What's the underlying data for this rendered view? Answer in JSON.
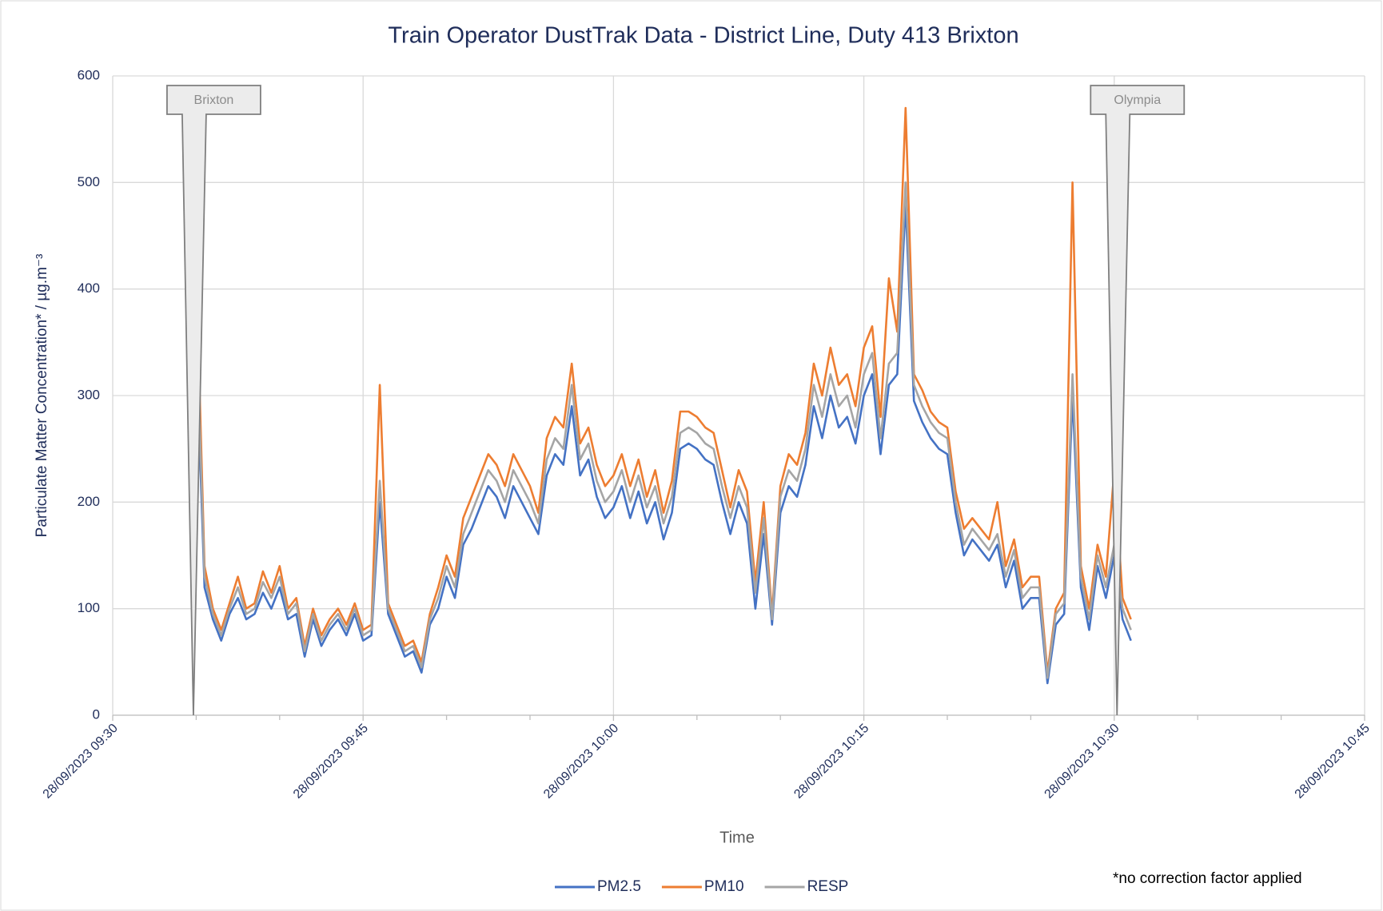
{
  "chart_data": {
    "type": "line",
    "title": "Train Operator DustTrak Data - District Line, Duty 413 Brixton",
    "x_label": "Time",
    "y_label": "Particulate Matter Concentration* / µg.m⁻³",
    "note": "*no correction factor applied",
    "xlim": [
      "28/09/2023 09:30",
      "28/09/2023 10:45"
    ],
    "xticks": [
      "28/09/2023 09:30",
      "28/09/2023 09:45",
      "28/09/2023 10:00",
      "28/09/2023 10:15",
      "28/09/2023 10:30",
      "28/09/2023 10:45"
    ],
    "xminorticks": [
      "28/09/2023 09:35",
      "28/09/2023 09:40",
      "28/09/2023 09:50",
      "28/09/2023 09:55",
      "28/09/2023 10:05",
      "28/09/2023 10:10",
      "28/09/2023 10:20",
      "28/09/2023 10:25",
      "28/09/2023 10:35",
      "28/09/2023 10:40"
    ],
    "ylim": [
      0,
      600
    ],
    "yticks": [
      0,
      100,
      200,
      300,
      400,
      500,
      600
    ],
    "grid": true,
    "legend": "bottom",
    "annotations": [
      {
        "text": "Brixton",
        "x": "28/09/2023 09:34:50"
      },
      {
        "text": "Olympia",
        "x": "28/09/2023 10:30:10"
      }
    ],
    "x": [
      "28/09/2023 09:35:00",
      "28/09/2023 09:35:30",
      "28/09/2023 09:36:00",
      "28/09/2023 09:36:30",
      "28/09/2023 09:37:00",
      "28/09/2023 09:37:30",
      "28/09/2023 09:38:00",
      "28/09/2023 09:38:30",
      "28/09/2023 09:39:00",
      "28/09/2023 09:39:30",
      "28/09/2023 09:40:00",
      "28/09/2023 09:40:30",
      "28/09/2023 09:41:00",
      "28/09/2023 09:41:30",
      "28/09/2023 09:42:00",
      "28/09/2023 09:42:30",
      "28/09/2023 09:43:00",
      "28/09/2023 09:43:30",
      "28/09/2023 09:44:00",
      "28/09/2023 09:44:30",
      "28/09/2023 09:45:00",
      "28/09/2023 09:45:30",
      "28/09/2023 09:46:00",
      "28/09/2023 09:46:30",
      "28/09/2023 09:47:00",
      "28/09/2023 09:47:30",
      "28/09/2023 09:48:00",
      "28/09/2023 09:48:30",
      "28/09/2023 09:49:00",
      "28/09/2023 09:49:30",
      "28/09/2023 09:50:00",
      "28/09/2023 09:50:30",
      "28/09/2023 09:51:00",
      "28/09/2023 09:51:30",
      "28/09/2023 09:52:00",
      "28/09/2023 09:52:30",
      "28/09/2023 09:53:00",
      "28/09/2023 09:53:30",
      "28/09/2023 09:54:00",
      "28/09/2023 09:54:30",
      "28/09/2023 09:55:00",
      "28/09/2023 09:55:30",
      "28/09/2023 09:56:00",
      "28/09/2023 09:56:30",
      "28/09/2023 09:57:00",
      "28/09/2023 09:57:30",
      "28/09/2023 09:58:00",
      "28/09/2023 09:58:30",
      "28/09/2023 09:59:00",
      "28/09/2023 09:59:30",
      "28/09/2023 10:00:00",
      "28/09/2023 10:00:30",
      "28/09/2023 10:01:00",
      "28/09/2023 10:01:30",
      "28/09/2023 10:02:00",
      "28/09/2023 10:02:30",
      "28/09/2023 10:03:00",
      "28/09/2023 10:03:30",
      "28/09/2023 10:04:00",
      "28/09/2023 10:04:30",
      "28/09/2023 10:05:00",
      "28/09/2023 10:05:30",
      "28/09/2023 10:06:00",
      "28/09/2023 10:06:30",
      "28/09/2023 10:07:00",
      "28/09/2023 10:07:30",
      "28/09/2023 10:08:00",
      "28/09/2023 10:08:30",
      "28/09/2023 10:09:00",
      "28/09/2023 10:09:30",
      "28/09/2023 10:10:00",
      "28/09/2023 10:10:30",
      "28/09/2023 10:11:00",
      "28/09/2023 10:11:30",
      "28/09/2023 10:12:00",
      "28/09/2023 10:12:30",
      "28/09/2023 10:13:00",
      "28/09/2023 10:13:30",
      "28/09/2023 10:14:00",
      "28/09/2023 10:14:30",
      "28/09/2023 10:15:00",
      "28/09/2023 10:15:30",
      "28/09/2023 10:16:00",
      "28/09/2023 10:16:30",
      "28/09/2023 10:17:00",
      "28/09/2023 10:17:30",
      "28/09/2023 10:18:00",
      "28/09/2023 10:18:30",
      "28/09/2023 10:19:00",
      "28/09/2023 10:19:30",
      "28/09/2023 10:20:00",
      "28/09/2023 10:20:30",
      "28/09/2023 10:21:00",
      "28/09/2023 10:21:30",
      "28/09/2023 10:22:00",
      "28/09/2023 10:22:30",
      "28/09/2023 10:23:00",
      "28/09/2023 10:23:30",
      "28/09/2023 10:24:00",
      "28/09/2023 10:24:30",
      "28/09/2023 10:25:00",
      "28/09/2023 10:25:30",
      "28/09/2023 10:26:00",
      "28/09/2023 10:26:30",
      "28/09/2023 10:27:00",
      "28/09/2023 10:27:30",
      "28/09/2023 10:28:00",
      "28/09/2023 10:28:30",
      "28/09/2023 10:29:00",
      "28/09/2023 10:29:30",
      "28/09/2023 10:30:00",
      "28/09/2023 10:30:30",
      "28/09/2023 10:31:00"
    ],
    "series": [
      {
        "name": "PM2.5",
        "color": "#4472c4",
        "values": [
          350,
          120,
          90,
          70,
          95,
          110,
          90,
          95,
          115,
          100,
          120,
          90,
          95,
          55,
          90,
          65,
          80,
          90,
          75,
          95,
          70,
          75,
          200,
          95,
          75,
          55,
          60,
          40,
          85,
          100,
          130,
          110,
          160,
          175,
          195,
          215,
          205,
          185,
          215,
          200,
          185,
          170,
          225,
          245,
          235,
          290,
          225,
          240,
          205,
          185,
          195,
          215,
          185,
          210,
          180,
          200,
          165,
          190,
          250,
          255,
          250,
          240,
          235,
          200,
          170,
          200,
          180,
          100,
          170,
          85,
          190,
          215,
          205,
          235,
          290,
          260,
          300,
          270,
          280,
          255,
          300,
          320,
          245,
          310,
          320,
          480,
          295,
          275,
          260,
          250,
          245,
          190,
          150,
          165,
          155,
          145,
          160,
          120,
          145,
          100,
          110,
          110,
          30,
          85,
          95,
          300,
          120,
          80,
          140,
          110,
          150,
          90,
          70
        ]
      },
      {
        "name": "PM10",
        "color": "#ed7d31",
        "values": [
          420,
          140,
          100,
          80,
          105,
          130,
          100,
          105,
          135,
          115,
          140,
          100,
          110,
          65,
          100,
          75,
          90,
          100,
          85,
          105,
          80,
          85,
          310,
          105,
          85,
          65,
          70,
          50,
          95,
          120,
          150,
          130,
          185,
          205,
          225,
          245,
          235,
          215,
          245,
          230,
          215,
          190,
          260,
          280,
          270,
          330,
          255,
          270,
          235,
          215,
          225,
          245,
          215,
          240,
          205,
          230,
          190,
          220,
          285,
          285,
          280,
          270,
          265,
          230,
          195,
          230,
          210,
          125,
          200,
          95,
          215,
          245,
          235,
          265,
          330,
          300,
          345,
          310,
          320,
          290,
          345,
          365,
          280,
          410,
          360,
          570,
          320,
          305,
          285,
          275,
          270,
          210,
          175,
          185,
          175,
          165,
          200,
          140,
          165,
          120,
          130,
          130,
          40,
          100,
          115,
          500,
          140,
          100,
          160,
          130,
          230,
          110,
          90
        ]
      },
      {
        "name": "RESP",
        "color": "#a5a5a5",
        "values": [
          380,
          130,
          95,
          75,
          100,
          120,
          95,
          100,
          125,
          110,
          130,
          95,
          105,
          60,
          95,
          70,
          85,
          95,
          80,
          100,
          75,
          80,
          220,
          100,
          80,
          60,
          65,
          45,
          90,
          110,
          140,
          120,
          170,
          190,
          210,
          230,
          220,
          200,
          230,
          215,
          200,
          180,
          240,
          260,
          250,
          310,
          240,
          255,
          220,
          200,
          210,
          230,
          200,
          225,
          195,
          215,
          180,
          205,
          265,
          270,
          265,
          255,
          250,
          215,
          185,
          215,
          195,
          115,
          185,
          90,
          205,
          230,
          220,
          250,
          310,
          280,
          320,
          290,
          300,
          270,
          320,
          340,
          260,
          330,
          340,
          500,
          310,
          290,
          275,
          265,
          260,
          200,
          160,
          175,
          165,
          155,
          170,
          130,
          155,
          110,
          120,
          120,
          35,
          95,
          105,
          320,
          130,
          90,
          150,
          120,
          160,
          100,
          80
        ]
      }
    ]
  }
}
